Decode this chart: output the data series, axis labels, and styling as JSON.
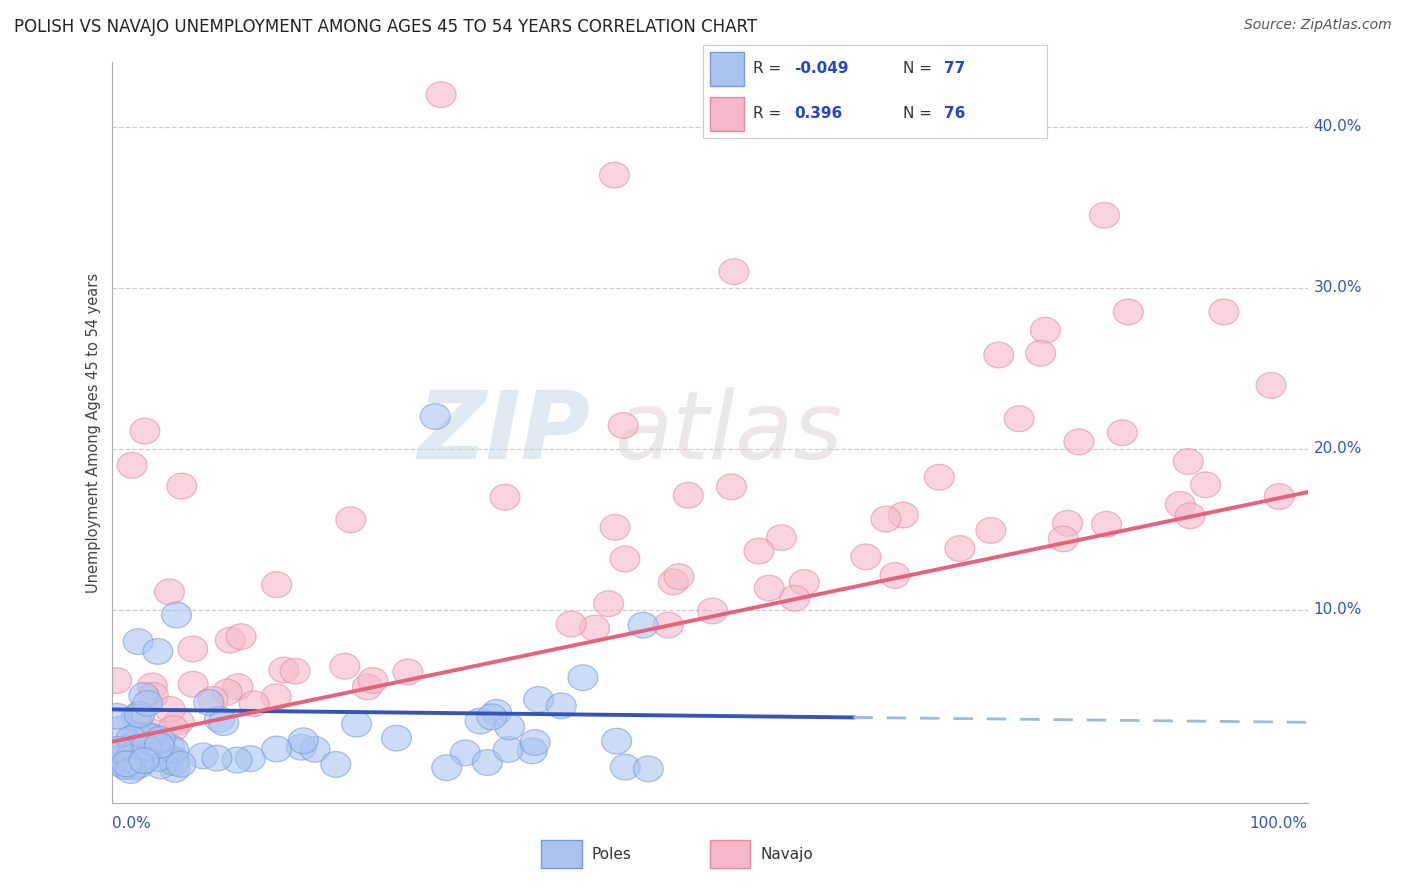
{
  "title": "POLISH VS NAVAJO UNEMPLOYMENT AMONG AGES 45 TO 54 YEARS CORRELATION CHART",
  "source": "Source: ZipAtlas.com",
  "ylabel": "Unemployment Among Ages 45 to 54 years",
  "watermark_zip": "ZIP",
  "watermark_atlas": "atlas",
  "poles_color_face": "#aac4f0",
  "poles_color_edge": "#7799dd",
  "navajo_color_face": "#f5b8c8",
  "navajo_color_edge": "#e888a0",
  "trend_line_blue_solid": "#3355bb",
  "trend_line_blue_dash": "#99bbdd",
  "trend_line_pink": "#e8607a",
  "background_color": "#ffffff",
  "title_fontsize": 12,
  "source_fontsize": 10,
  "tick_fontsize": 11
}
